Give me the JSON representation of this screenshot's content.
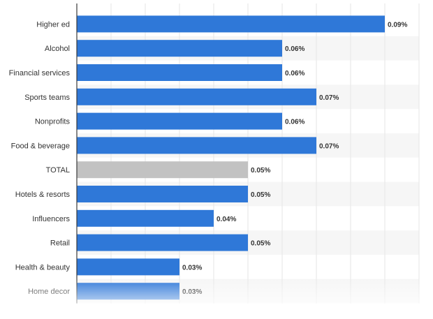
{
  "chart_data": {
    "type": "bar",
    "orientation": "horizontal",
    "categories": [
      "Higher ed",
      "Alcohol",
      "Financial services",
      "Sports teams",
      "Nonprofits",
      "Food & beverage",
      "TOTAL",
      "Hotels & resorts",
      "Influencers",
      "Retail",
      "Health & beauty",
      "Home decor"
    ],
    "values": [
      0.09,
      0.06,
      0.06,
      0.07,
      0.06,
      0.07,
      0.05,
      0.05,
      0.04,
      0.05,
      0.03,
      0.03
    ],
    "value_labels": [
      "0.09%",
      "0.06%",
      "0.06%",
      "0.07%",
      "0.06%",
      "0.07%",
      "0.05%",
      "0.05%",
      "0.04%",
      "0.05%",
      "0.03%",
      "0.03%"
    ],
    "highlight_category": "TOTAL",
    "xlim": [
      0,
      0.1
    ],
    "grid": true,
    "colors": {
      "bar": "#2f78d8",
      "highlight_bar": "#c2c2c2",
      "label": "#333333",
      "value_label": "#333333",
      "stripe": "#f6f6f6",
      "grid": "#e6e6e6",
      "axis": "#3a3a3a"
    }
  }
}
